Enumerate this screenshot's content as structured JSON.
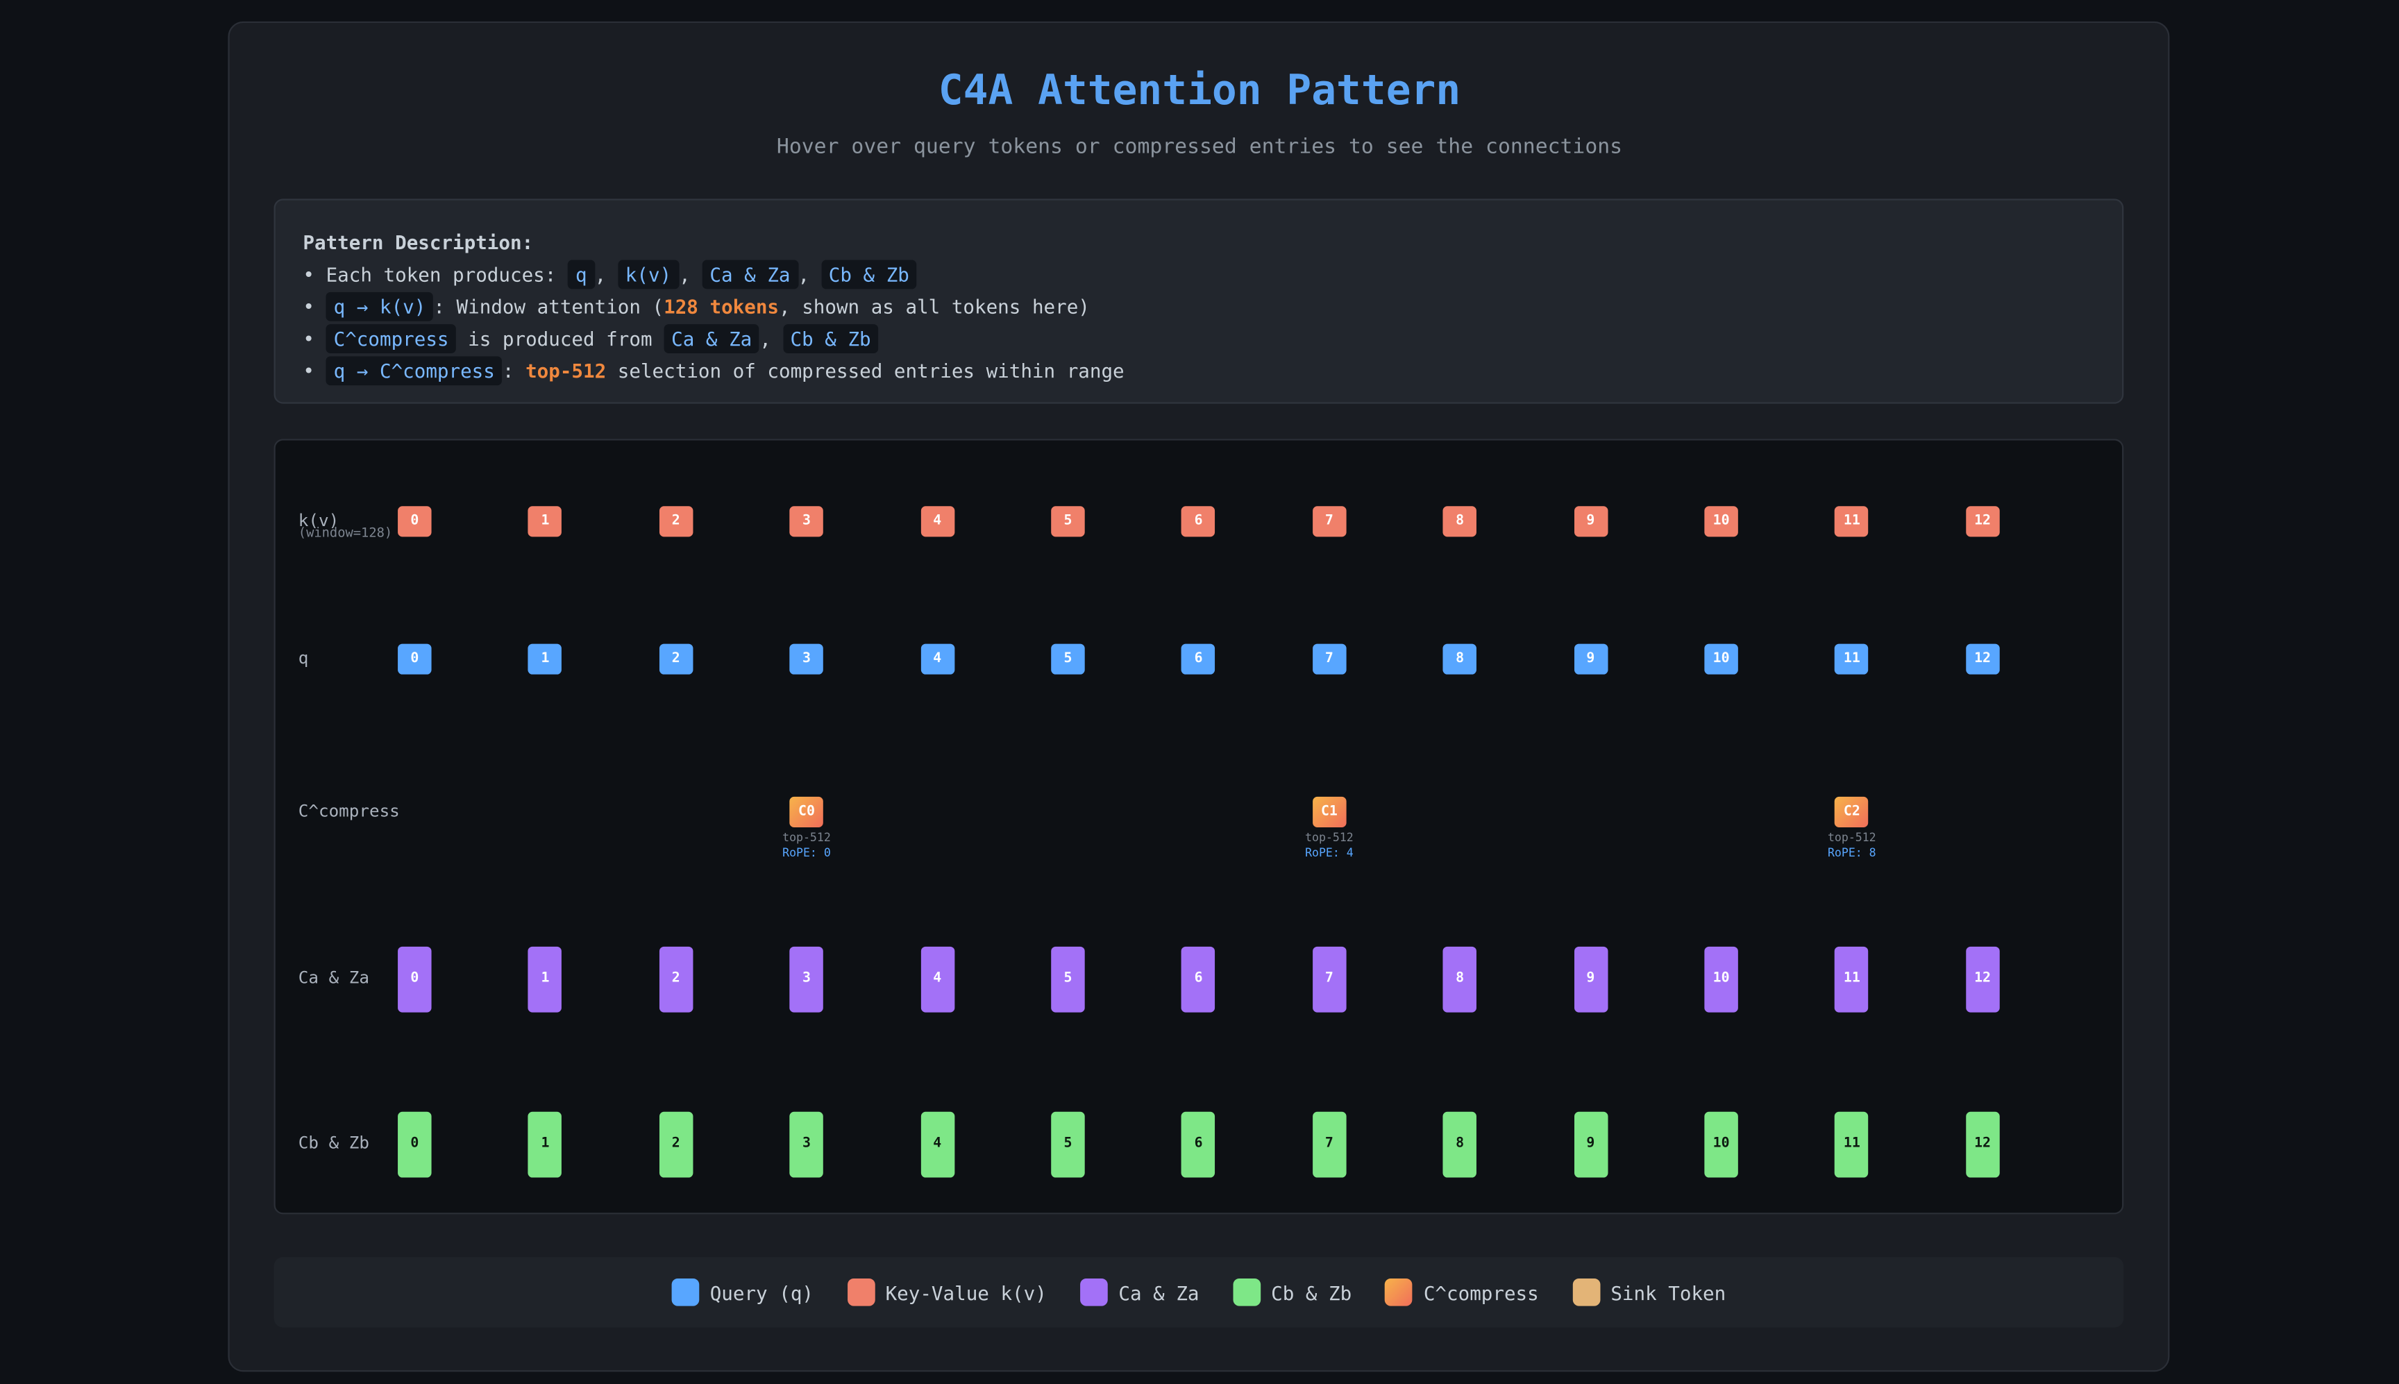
{
  "header": {
    "title": "C4A Attention Pattern",
    "subtitle": "Hover over query tokens or compressed entries to see the connections"
  },
  "description": {
    "heading": "Pattern Description:",
    "lines": [
      [
        {
          "text": "• Each token produces: ",
          "kind": "text"
        },
        {
          "text": "q",
          "kind": "code"
        },
        {
          "text": ", ",
          "kind": "text"
        },
        {
          "text": "k(v)",
          "kind": "code"
        },
        {
          "text": ", ",
          "kind": "text"
        },
        {
          "text": "Ca & Za",
          "kind": "code"
        },
        {
          "text": ", ",
          "kind": "text"
        },
        {
          "text": "Cb & Zb",
          "kind": "code"
        }
      ],
      [
        {
          "text": "• ",
          "kind": "text"
        },
        {
          "text": "q → k(v)",
          "kind": "code"
        },
        {
          "text": ": Window attention (",
          "kind": "text"
        },
        {
          "text": "128 tokens",
          "kind": "highlight"
        },
        {
          "text": ", shown as all tokens here)",
          "kind": "text"
        }
      ],
      [
        {
          "text": "• ",
          "kind": "text"
        },
        {
          "text": "C^compress",
          "kind": "code"
        },
        {
          "text": " is produced from ",
          "kind": "text"
        },
        {
          "text": "Ca & Za",
          "kind": "code"
        },
        {
          "text": ", ",
          "kind": "text"
        },
        {
          "text": "Cb & Zb",
          "kind": "code"
        }
      ],
      [
        {
          "text": "• ",
          "kind": "text"
        },
        {
          "text": "q → C^compress",
          "kind": "code"
        },
        {
          "text": ": ",
          "kind": "text"
        },
        {
          "text": "top-512",
          "kind": "highlight"
        },
        {
          "text": " selection of compressed entries within range",
          "kind": "text"
        }
      ]
    ]
  },
  "tokens": [
    "0",
    "1",
    "2",
    "3",
    "4",
    "5",
    "6",
    "7",
    "8",
    "9",
    "10",
    "11",
    "12"
  ],
  "rows": [
    {
      "label": "k(v)",
      "sublabel": "(window=128)",
      "color": "#f0806a"
    },
    {
      "label": "q",
      "color": "#58a6ff"
    },
    {
      "label": "C^compress"
    },
    {
      "label": "Ca & Za",
      "color": "#a371f7"
    },
    {
      "label": "Cb & Zb",
      "color": "#7ee787"
    }
  ],
  "compressed": [
    {
      "label": "C0",
      "note": "top-512",
      "rope": "RoPE: 0"
    },
    {
      "label": "C1",
      "note": "top-512",
      "rope": "RoPE: 4"
    },
    {
      "label": "C2",
      "note": "top-512",
      "rope": "RoPE: 8"
    }
  ],
  "legend": [
    {
      "label": "Query (q)",
      "color": "#58a6ff"
    },
    {
      "label": "Key-Value k(v)",
      "color": "#f0806a"
    },
    {
      "label": "Ca & Za",
      "color": "#a371f7"
    },
    {
      "label": "Cb & Zb",
      "color": "#7ee787"
    },
    {
      "label": "C^compress",
      "color": "linear-gradient(135deg,#f7b34a,#f06e5a)"
    },
    {
      "label": "Sink Token",
      "color": "#e3b477"
    }
  ]
}
